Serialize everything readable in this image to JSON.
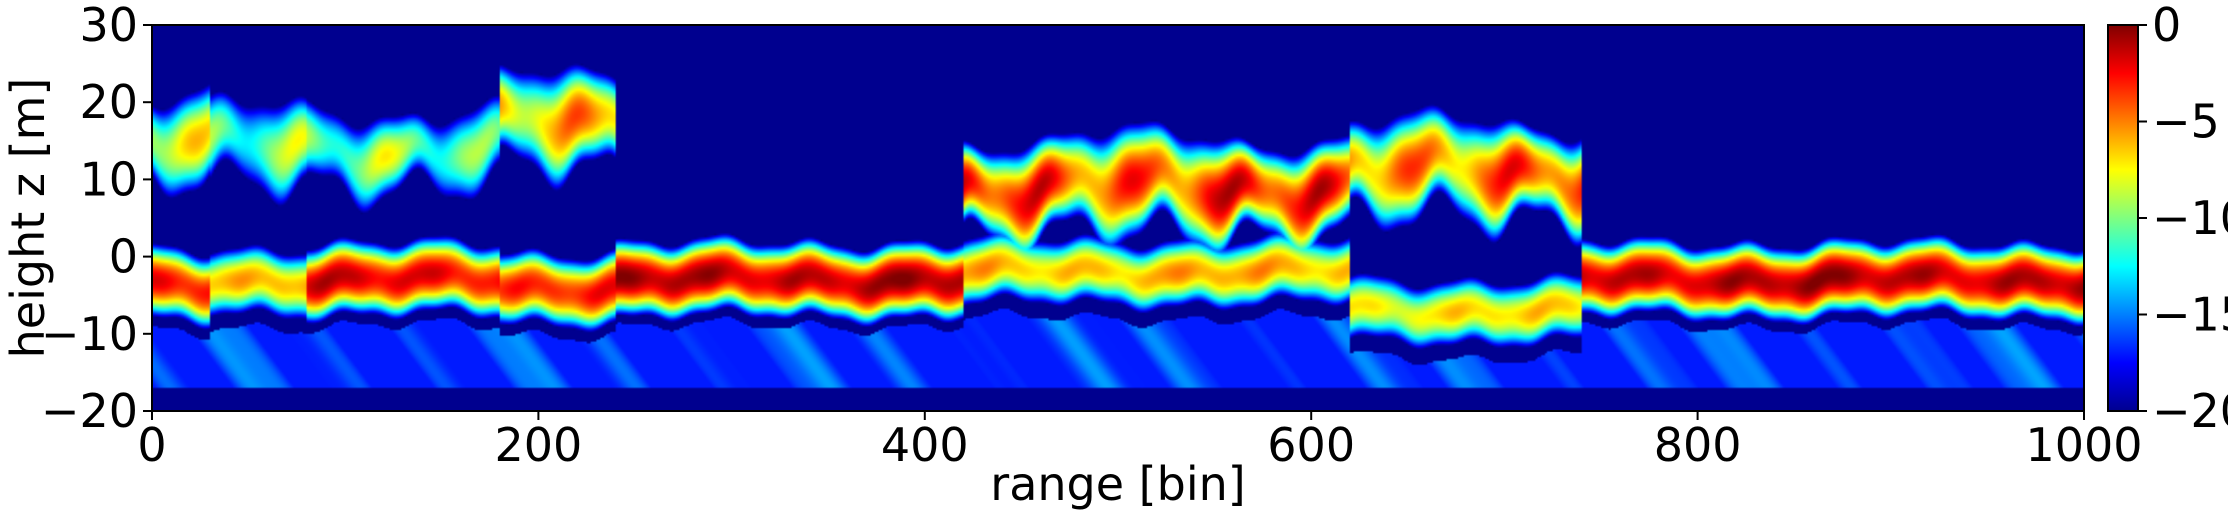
{
  "chart_data": {
    "type": "heatmap",
    "title": "",
    "xlabel": "range [bin]",
    "ylabel": "height z [m]",
    "xlim": [
      0,
      1000
    ],
    "ylim": [
      -20,
      30
    ],
    "x_ticks": [
      0,
      200,
      400,
      600,
      800,
      1000
    ],
    "y_ticks": [
      -20,
      -10,
      0,
      10,
      20,
      30
    ],
    "x_tick_labels": [
      "0",
      "200",
      "400",
      "600",
      "800",
      "1000"
    ],
    "y_tick_labels": [
      "−20",
      "−10",
      "0",
      "10",
      "20",
      "30"
    ],
    "colormap": "jet",
    "background_color": "#00008f",
    "colorbar": {
      "vmin": -20,
      "vmax": 0,
      "ticks": [
        -20,
        -15,
        -10,
        -5,
        0
      ],
      "tick_labels": [
        "−20",
        "−15",
        "−10",
        "−5",
        "0"
      ]
    },
    "intensity_profile": {
      "description_units": "range bin vs height z [m], colour value in colorbar units (approx.)",
      "segments": [
        {
          "x": [
            0,
            30
          ],
          "ground_z": -4,
          "ground_value": -2,
          "upper_z": 15,
          "upper_value": -5
        },
        {
          "x": [
            30,
            80
          ],
          "ground_z": -3,
          "ground_value": -6,
          "upper_z": 14,
          "upper_value": -7
        },
        {
          "x": [
            80,
            180
          ],
          "ground_z": -3,
          "ground_value": -2,
          "upper_z": 14,
          "upper_value": -8
        },
        {
          "x": [
            180,
            240
          ],
          "ground_z": -4,
          "ground_value": -3,
          "upper_z": 17,
          "upper_value": -3
        },
        {
          "x": [
            240,
            420
          ],
          "ground_z": -3,
          "ground_value": -1,
          "upper_z": null,
          "upper_value": null
        },
        {
          "x": [
            420,
            620
          ],
          "ground_z": -2,
          "ground_value": -6,
          "upper_z": 9,
          "upper_value": -1
        },
        {
          "x": [
            620,
            740
          ],
          "ground_z": -7,
          "ground_value": -7,
          "upper_z": 11,
          "upper_value": -2
        },
        {
          "x": [
            740,
            1000
          ],
          "ground_z": -3,
          "ground_value": -1,
          "upper_z": null,
          "upper_value": null
        }
      ]
    }
  }
}
